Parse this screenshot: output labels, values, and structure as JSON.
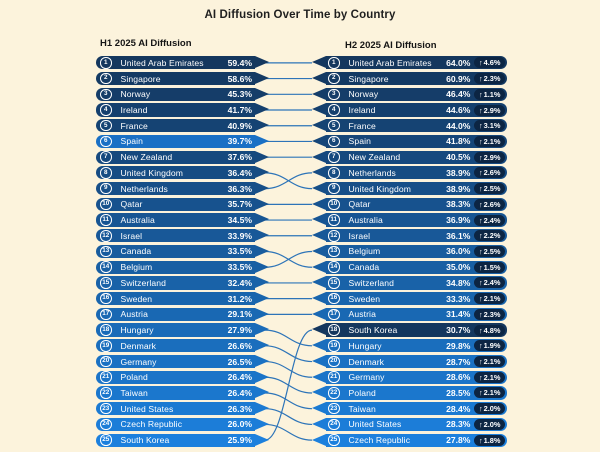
{
  "title": "AI Diffusion Over Time by Country",
  "header": {
    "left": "H1 2025 AI Diffusion",
    "right": "H2 2025 AI Diffusion"
  },
  "icons": {
    "up_arrow": "↑"
  },
  "colors": {
    "background": "#fcf3dc",
    "row_gradient_start": "#14375e",
    "row_gradient_end": "#1c80dd",
    "row_override_h1_2025": {
      "5": "#1a70c5"
    },
    "row_override_h2_2025": {
      "17": "#14375e"
    },
    "change_badge": "#0c2543",
    "connector_line": "#2d74b8",
    "pill_text": "#ffffff",
    "title_text": "#1f1f1f"
  },
  "chart_data": {
    "type": "table",
    "subtype": "ranked-slopegraph",
    "title": "AI Diffusion Over Time by Country",
    "columns": [
      "H1 2025 AI Diffusion",
      "H2 2025 AI Diffusion"
    ],
    "unit": "%",
    "h1_2025": [
      {
        "rank": 1,
        "country": "United Arab Emirates",
        "value": 59.4
      },
      {
        "rank": 2,
        "country": "Singapore",
        "value": 58.6
      },
      {
        "rank": 3,
        "country": "Norway",
        "value": 45.3
      },
      {
        "rank": 4,
        "country": "Ireland",
        "value": 41.7
      },
      {
        "rank": 5,
        "country": "France",
        "value": 40.9
      },
      {
        "rank": 6,
        "country": "Spain",
        "value": 39.7
      },
      {
        "rank": 7,
        "country": "New Zealand",
        "value": 37.6
      },
      {
        "rank": 8,
        "country": "United Kingdom",
        "value": 36.4
      },
      {
        "rank": 9,
        "country": "Netherlands",
        "value": 36.3
      },
      {
        "rank": 10,
        "country": "Qatar",
        "value": 35.7
      },
      {
        "rank": 11,
        "country": "Australia",
        "value": 34.5
      },
      {
        "rank": 12,
        "country": "Israel",
        "value": 33.9
      },
      {
        "rank": 13,
        "country": "Canada",
        "value": 33.5
      },
      {
        "rank": 14,
        "country": "Belgium",
        "value": 33.5
      },
      {
        "rank": 15,
        "country": "Switzerland",
        "value": 32.4
      },
      {
        "rank": 16,
        "country": "Sweden",
        "value": 31.2
      },
      {
        "rank": 17,
        "country": "Austria",
        "value": 29.1
      },
      {
        "rank": 18,
        "country": "Hungary",
        "value": 27.9
      },
      {
        "rank": 19,
        "country": "Denmark",
        "value": 26.6
      },
      {
        "rank": 20,
        "country": "Germany",
        "value": 26.5
      },
      {
        "rank": 21,
        "country": "Poland",
        "value": 26.4
      },
      {
        "rank": 22,
        "country": "Taiwan",
        "value": 26.4
      },
      {
        "rank": 23,
        "country": "United States",
        "value": 26.3
      },
      {
        "rank": 24,
        "country": "Czech Republic",
        "value": 26.0
      },
      {
        "rank": 25,
        "country": "South Korea",
        "value": 25.9
      }
    ],
    "h2_2025": [
      {
        "rank": 1,
        "country": "United Arab Emirates",
        "value": 64.0,
        "change": 4.6
      },
      {
        "rank": 2,
        "country": "Singapore",
        "value": 60.9,
        "change": 2.3
      },
      {
        "rank": 3,
        "country": "Norway",
        "value": 46.4,
        "change": 1.1
      },
      {
        "rank": 4,
        "country": "Ireland",
        "value": 44.6,
        "change": 2.9
      },
      {
        "rank": 5,
        "country": "France",
        "value": 44.0,
        "change": 3.1
      },
      {
        "rank": 6,
        "country": "Spain",
        "value": 41.8,
        "change": 2.1
      },
      {
        "rank": 7,
        "country": "New Zealand",
        "value": 40.5,
        "change": 2.9
      },
      {
        "rank": 8,
        "country": "Netherlands",
        "value": 38.9,
        "change": 2.6
      },
      {
        "rank": 9,
        "country": "United Kingdom",
        "value": 38.9,
        "change": 2.5
      },
      {
        "rank": 10,
        "country": "Qatar",
        "value": 38.3,
        "change": 2.6
      },
      {
        "rank": 11,
        "country": "Australia",
        "value": 36.9,
        "change": 2.4
      },
      {
        "rank": 12,
        "country": "Israel",
        "value": 36.1,
        "change": 2.2
      },
      {
        "rank": 13,
        "country": "Belgium",
        "value": 36.0,
        "change": 2.5
      },
      {
        "rank": 14,
        "country": "Canada",
        "value": 35.0,
        "change": 1.5
      },
      {
        "rank": 15,
        "country": "Switzerland",
        "value": 34.8,
        "change": 2.4
      },
      {
        "rank": 16,
        "country": "Sweden",
        "value": 33.3,
        "change": 2.1
      },
      {
        "rank": 17,
        "country": "Austria",
        "value": 31.4,
        "change": 2.3
      },
      {
        "rank": 18,
        "country": "South Korea",
        "value": 30.7,
        "change": 4.8
      },
      {
        "rank": 19,
        "country": "Hungary",
        "value": 29.8,
        "change": 1.9
      },
      {
        "rank": 20,
        "country": "Denmark",
        "value": 28.7,
        "change": 2.1
      },
      {
        "rank": 21,
        "country": "Germany",
        "value": 28.6,
        "change": 2.1
      },
      {
        "rank": 22,
        "country": "Poland",
        "value": 28.5,
        "change": 2.1
      },
      {
        "rank": 23,
        "country": "Taiwan",
        "value": 28.4,
        "change": 2.0
      },
      {
        "rank": 24,
        "country": "United States",
        "value": 28.3,
        "change": 2.0
      },
      {
        "rank": 25,
        "country": "Czech Republic",
        "value": 27.8,
        "change": 1.8
      }
    ],
    "links_h1_to_h2": [
      [
        1,
        1
      ],
      [
        2,
        2
      ],
      [
        3,
        3
      ],
      [
        4,
        4
      ],
      [
        5,
        5
      ],
      [
        6,
        6
      ],
      [
        7,
        7
      ],
      [
        8,
        9
      ],
      [
        9,
        8
      ],
      [
        10,
        10
      ],
      [
        11,
        11
      ],
      [
        12,
        12
      ],
      [
        13,
        14
      ],
      [
        14,
        13
      ],
      [
        15,
        15
      ],
      [
        16,
        16
      ],
      [
        17,
        17
      ],
      [
        18,
        19
      ],
      [
        19,
        20
      ],
      [
        20,
        21
      ],
      [
        21,
        22
      ],
      [
        22,
        23
      ],
      [
        23,
        24
      ],
      [
        24,
        25
      ],
      [
        25,
        18
      ]
    ]
  }
}
